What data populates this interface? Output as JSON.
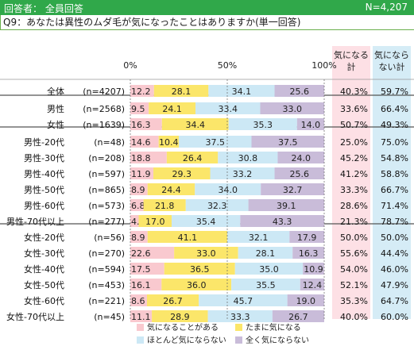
{
  "header": {
    "respondents": "回答者：  全員回答",
    "n_total": "N=4,207"
  },
  "question": "Q9：あなたは異性のムダ毛が気になったことはありますか(単一回答)",
  "colors": {
    "s1": "#f9c9cf",
    "s2": "#fbe66a",
    "s3": "#cce8f5",
    "s4": "#c9bcd9",
    "col1_bg": "#fde0e5",
    "col2_bg": "#d5ecf6",
    "header_bg": "#30a84a",
    "separator": "#555555"
  },
  "chart_data": {
    "type": "bar",
    "orientation": "horizontal",
    "stacked": true,
    "xlim": [
      0,
      100
    ],
    "x_ticks": [
      "0%",
      "50%",
      "100%"
    ],
    "categories": [
      "全体 (n=4207)",
      "男性 (n=2568)",
      "女性 (n=1639)",
      "男性-20代 (n=48)",
      "男性-30代 (n=208)",
      "男性-40代 (n=597)",
      "男性-50代 (n=865)",
      "男性-60代 (n=573)",
      "男性-70代以上 (n=277)",
      "女性-20代 (n=56)",
      "女性-30代 (n=270)",
      "女性-40代 (n=594)",
      "女性-50代 (n=453)",
      "女性-60代 (n=221)",
      "女性-70代以上 (n=45)"
    ],
    "row_labels": [
      {
        "name": "全体",
        "n": "(n=4207)"
      },
      {
        "name": "男性",
        "n": "(n=2568)"
      },
      {
        "name": "女性",
        "n": "(n=1639)"
      },
      {
        "name": "男性-20代",
        "n": "(n=48)"
      },
      {
        "name": "男性-30代",
        "n": "(n=208)"
      },
      {
        "name": "男性-40代",
        "n": "(n=597)"
      },
      {
        "name": "男性-50代",
        "n": "(n=865)"
      },
      {
        "name": "男性-60代",
        "n": "(n=573)"
      },
      {
        "name": "男性-70代以上",
        "n": "(n=277)"
      },
      {
        "name": "女性-20代",
        "n": "(n=56)"
      },
      {
        "name": "女性-30代",
        "n": "(n=270)"
      },
      {
        "name": "女性-40代",
        "n": "(n=594)"
      },
      {
        "name": "女性-50代",
        "n": "(n=453)"
      },
      {
        "name": "女性-60代",
        "n": "(n=221)"
      },
      {
        "name": "女性-70代以上",
        "n": "(n=45)"
      }
    ],
    "series": [
      {
        "name": "気になることがある",
        "color": "#f9c9cf",
        "values": [
          12.2,
          9.5,
          16.3,
          14.6,
          18.8,
          11.9,
          8.9,
          6.8,
          4.3,
          8.9,
          22.6,
          17.5,
          16.1,
          8.6,
          11.1
        ]
      },
      {
        "name": "たまに気になる",
        "color": "#fbe66a",
        "values": [
          28.1,
          24.1,
          34.4,
          10.4,
          26.4,
          29.3,
          24.4,
          21.8,
          17.0,
          41.1,
          33.0,
          36.5,
          36.0,
          26.7,
          28.9
        ]
      },
      {
        "name": "ほとんど気にならない",
        "color": "#cce8f5",
        "values": [
          34.1,
          33.4,
          35.3,
          37.5,
          30.8,
          33.2,
          34.0,
          32.3,
          35.4,
          32.1,
          28.1,
          35.0,
          35.5,
          45.7,
          33.3
        ]
      },
      {
        "name": "全く気にならない",
        "color": "#c9bcd9",
        "values": [
          25.6,
          33.0,
          14.0,
          37.5,
          24.0,
          25.6,
          32.7,
          39.1,
          43.3,
          17.9,
          16.3,
          10.9,
          12.4,
          19.0,
          26.7
        ]
      }
    ],
    "summary_columns": [
      {
        "title": "気になる計",
        "values": [
          "40.3%",
          "33.6%",
          "50.7%",
          "25.0%",
          "45.2%",
          "41.2%",
          "33.3%",
          "28.6%",
          "21.3%",
          "50.0%",
          "55.6%",
          "54.0%",
          "52.1%",
          "35.3%",
          "40.0%"
        ]
      },
      {
        "title": "気になら ない計",
        "values": [
          "59.7%",
          "66.4%",
          "49.3%",
          "75.0%",
          "54.8%",
          "58.8%",
          "66.7%",
          "71.4%",
          "78.7%",
          "50.0%",
          "44.4%",
          "46.0%",
          "47.9%",
          "64.7%",
          "60.0%"
        ]
      }
    ],
    "legend_position": "bottom"
  }
}
